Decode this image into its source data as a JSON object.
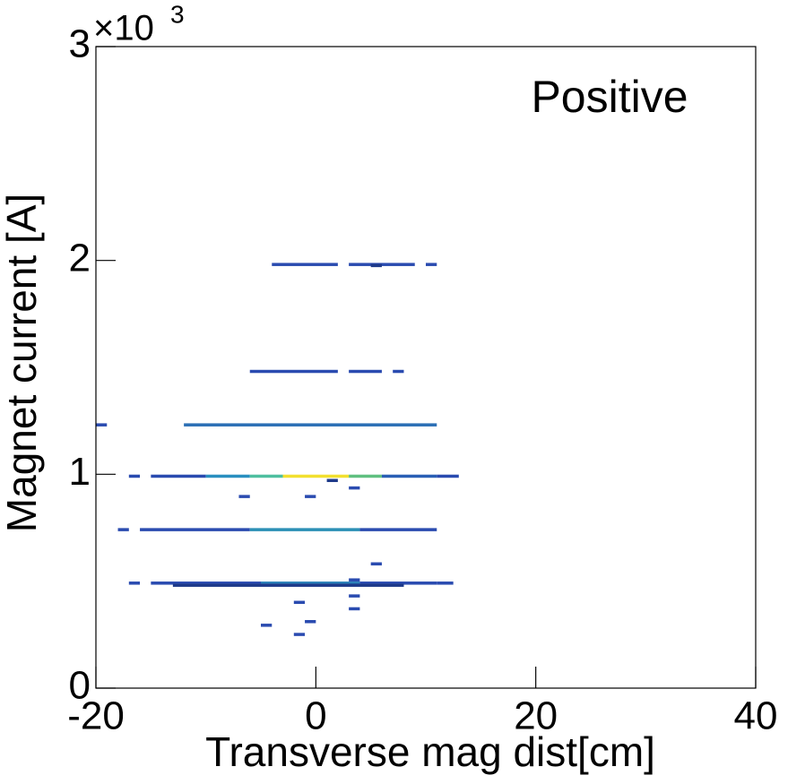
{
  "chart_data": {
    "type": "heatmap",
    "title": "Positive",
    "x_label": "Transverse mag dist[cm]",
    "y_label": "Magnet current [A]",
    "y_multiplier": {
      "base": "×10",
      "exponent": "3"
    },
    "xlim": [
      -20,
      40
    ],
    "ylim": [
      0,
      3000
    ],
    "xticks": [
      -20,
      0,
      20,
      40
    ],
    "yticks": [
      {
        "value": 0,
        "label": "0"
      },
      {
        "value": 1000,
        "label": "1"
      },
      {
        "value": 2000,
        "label": "2"
      },
      {
        "value": 3000,
        "label": "3"
      }
    ],
    "segments": [
      {
        "y": 1980,
        "x0": -4,
        "x1": 2,
        "color": "#2a4bb0"
      },
      {
        "y": 1980,
        "x0": 3,
        "x1": 9,
        "color": "#2a4bb0"
      },
      {
        "y": 1980,
        "x0": 10,
        "x1": 11,
        "color": "#2a4bb0"
      },
      {
        "y": 1975,
        "x0": 5,
        "x1": 6,
        "color": "#1e3a8a"
      },
      {
        "y": 1480,
        "x0": -6,
        "x1": 2,
        "color": "#2a4bb0"
      },
      {
        "y": 1480,
        "x0": 3,
        "x1": 6,
        "color": "#2a4bb0"
      },
      {
        "y": 1480,
        "x0": 7,
        "x1": 8,
        "color": "#2a4bb0"
      },
      {
        "y": 1230,
        "x0": -20,
        "x1": -19,
        "color": "#2a4bb0"
      },
      {
        "y": 1230,
        "x0": -12,
        "x1": 11,
        "color": "#2b6fb5"
      },
      {
        "y": 990,
        "x0": -17,
        "x1": -16,
        "color": "#2a4bb0"
      },
      {
        "y": 990,
        "x0": -15,
        "x1": -10,
        "color": "#2a4bb0"
      },
      {
        "y": 990,
        "x0": -10,
        "x1": -6,
        "color": "#2a8fc0"
      },
      {
        "y": 990,
        "x0": -6,
        "x1": -3,
        "color": "#4fbfa0"
      },
      {
        "y": 990,
        "x0": -3,
        "x1": 3,
        "color": "#f2e030"
      },
      {
        "y": 990,
        "x0": 3,
        "x1": 6,
        "color": "#60c080"
      },
      {
        "y": 990,
        "x0": 6,
        "x1": 11,
        "color": "#2a5fb5"
      },
      {
        "y": 990,
        "x0": 11,
        "x1": 13,
        "color": "#2a4bb0"
      },
      {
        "y": 970,
        "x0": 1,
        "x1": 2,
        "color": "#1e3a8a"
      },
      {
        "y": 935,
        "x0": 3,
        "x1": 4,
        "color": "#2a4bb0"
      },
      {
        "y": 895,
        "x0": -7,
        "x1": -6,
        "color": "#2a4bb0"
      },
      {
        "y": 895,
        "x0": -1,
        "x1": 0,
        "color": "#2a4bb0"
      },
      {
        "y": 740,
        "x0": -18,
        "x1": -17,
        "color": "#2a4bb0"
      },
      {
        "y": 740,
        "x0": -16,
        "x1": -6,
        "color": "#2a4bb0"
      },
      {
        "y": 740,
        "x0": -6,
        "x1": 4,
        "color": "#2b8fb5"
      },
      {
        "y": 740,
        "x0": 4,
        "x1": 10,
        "color": "#2a4bb0"
      },
      {
        "y": 740,
        "x0": 10,
        "x1": 11,
        "color": "#2a4bb0"
      },
      {
        "y": 580,
        "x0": 5,
        "x1": 6,
        "color": "#2a4bb0"
      },
      {
        "y": 505,
        "x0": 3,
        "x1": 4,
        "color": "#2a4bb0"
      },
      {
        "y": 490,
        "x0": -17,
        "x1": -16,
        "color": "#2a4bb0"
      },
      {
        "y": 490,
        "x0": -15,
        "x1": -5,
        "color": "#2a4bb0"
      },
      {
        "y": 490,
        "x0": -5,
        "x1": 4,
        "color": "#2a7fb8"
      },
      {
        "y": 490,
        "x0": 4,
        "x1": 11,
        "color": "#2a4bb0"
      },
      {
        "y": 490,
        "x0": 11,
        "x1": 12.5,
        "color": "#2a4bb0"
      },
      {
        "y": 480,
        "x0": -13,
        "x1": 8,
        "color": "#1e3a8a"
      },
      {
        "y": 430,
        "x0": 3,
        "x1": 4,
        "color": "#2a4bb0"
      },
      {
        "y": 400,
        "x0": -2,
        "x1": -1,
        "color": "#2a4bb0"
      },
      {
        "y": 370,
        "x0": 3,
        "x1": 4,
        "color": "#2a4bb0"
      },
      {
        "y": 310,
        "x0": -1,
        "x1": 0,
        "color": "#2a4bb0"
      },
      {
        "y": 293,
        "x0": -5,
        "x1": -4,
        "color": "#2a4bb0"
      },
      {
        "y": 250,
        "x0": -2,
        "x1": -1,
        "color": "#2a4bb0"
      }
    ]
  }
}
